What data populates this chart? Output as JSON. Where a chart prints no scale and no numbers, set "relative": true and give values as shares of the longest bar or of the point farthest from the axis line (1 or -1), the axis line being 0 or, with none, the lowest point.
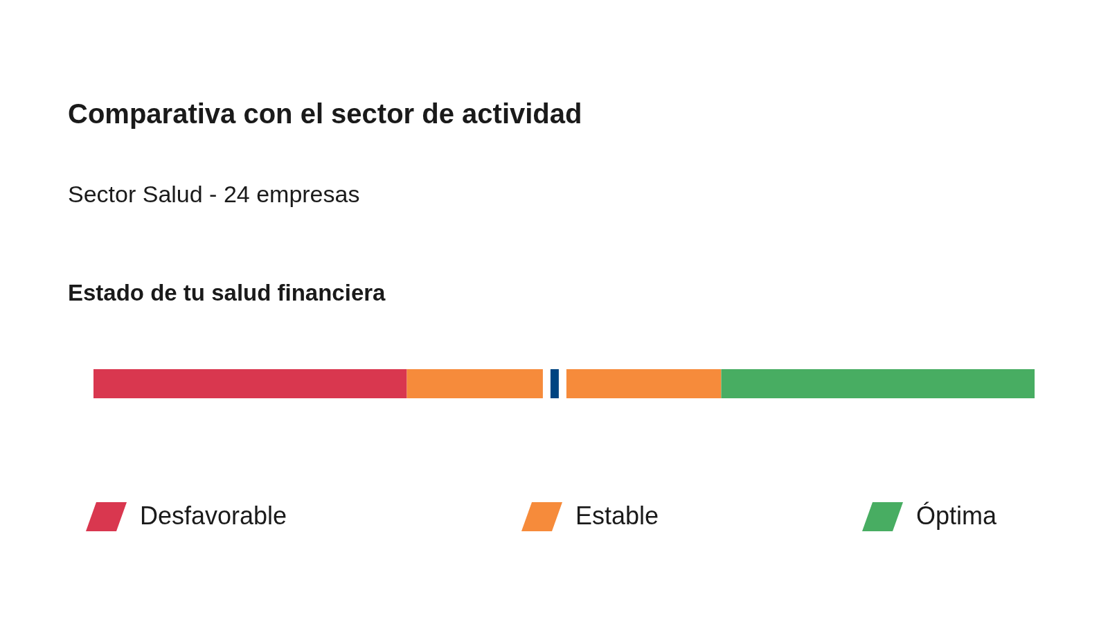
{
  "chart_data": {
    "type": "bar",
    "orientation": "horizontal",
    "stacked": true,
    "relative": true,
    "title": "Comparativa con el sector de actividad",
    "subtitle": "Sector Salud - 24 empresas",
    "annotations": [
      "Estado de tu salud financiera"
    ],
    "categories": [
      null
    ],
    "series": [
      {
        "name": "Desfavorable",
        "color": "#d9374f",
        "values": [
          0.333
        ]
      },
      {
        "name": "Estable",
        "color": "#f68b3b",
        "values": [
          0.334
        ]
      },
      {
        "name": "Óptima",
        "color": "#48ad62",
        "values": [
          0.333
        ]
      }
    ],
    "ref_lines": [
      {
        "axis": "x",
        "value": 0.49,
        "color": "#004481"
      }
    ],
    "legend": "bottom"
  }
}
